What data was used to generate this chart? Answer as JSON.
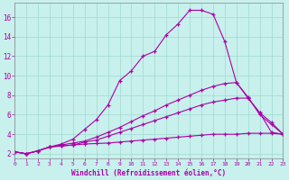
{
  "xlabel": "Windchill (Refroidissement éolien,°C)",
  "background_color": "#c8f0ec",
  "grid_color": "#a0d8d0",
  "line_color": "#aa00aa",
  "xlim": [
    0,
    23
  ],
  "ylim": [
    1.5,
    17.5
  ],
  "xticks": [
    0,
    1,
    2,
    3,
    4,
    5,
    6,
    7,
    8,
    9,
    10,
    11,
    12,
    13,
    14,
    15,
    16,
    17,
    18,
    19,
    20,
    21,
    22,
    23
  ],
  "yticks": [
    2,
    4,
    6,
    8,
    10,
    12,
    14,
    16
  ],
  "line1_x": [
    0,
    1,
    2,
    3,
    4,
    5,
    6,
    7,
    8,
    9,
    10,
    11,
    12,
    13,
    14,
    15,
    16,
    17,
    18,
    19,
    20,
    21,
    22,
    23
  ],
  "line1_y": [
    2.2,
    2.0,
    2.3,
    2.7,
    2.8,
    2.9,
    3.0,
    3.05,
    3.1,
    3.2,
    3.3,
    3.4,
    3.5,
    3.6,
    3.7,
    3.8,
    3.9,
    4.0,
    4.0,
    4.0,
    4.1,
    4.1,
    4.1,
    4.0
  ],
  "line2_x": [
    0,
    1,
    2,
    3,
    4,
    5,
    6,
    7,
    8,
    9,
    10,
    11,
    12,
    13,
    14,
    15,
    16,
    17,
    18,
    19,
    20,
    21,
    22,
    23
  ],
  "line2_y": [
    2.2,
    2.0,
    2.3,
    2.7,
    2.8,
    2.9,
    3.2,
    3.4,
    3.8,
    4.2,
    4.6,
    5.0,
    5.4,
    5.8,
    6.2,
    6.6,
    7.0,
    7.3,
    7.5,
    7.7,
    7.7,
    6.2,
    5.2,
    4.0
  ],
  "line3_x": [
    0,
    1,
    2,
    3,
    4,
    5,
    6,
    7,
    8,
    9,
    10,
    11,
    12,
    13,
    14,
    15,
    16,
    17,
    18,
    19,
    20,
    21,
    22,
    23
  ],
  "line3_y": [
    2.2,
    2.0,
    2.3,
    2.7,
    2.9,
    3.1,
    3.3,
    3.7,
    4.2,
    4.7,
    5.3,
    5.9,
    6.4,
    7.0,
    7.5,
    8.0,
    8.5,
    8.9,
    9.2,
    9.3,
    7.8,
    6.0,
    5.0,
    4.0
  ],
  "line4_x": [
    0,
    1,
    2,
    3,
    4,
    5,
    6,
    7,
    8,
    9,
    10,
    11,
    12,
    13,
    14,
    15,
    16,
    17,
    18,
    19,
    20,
    21,
    22,
    23
  ],
  "line4_y": [
    2.2,
    2.0,
    2.3,
    2.7,
    3.0,
    3.5,
    4.5,
    5.5,
    7.0,
    9.5,
    10.5,
    12.0,
    12.5,
    14.2,
    15.3,
    16.7,
    16.7,
    16.3,
    13.5,
    9.3,
    7.7,
    6.2,
    4.2,
    4.0
  ]
}
